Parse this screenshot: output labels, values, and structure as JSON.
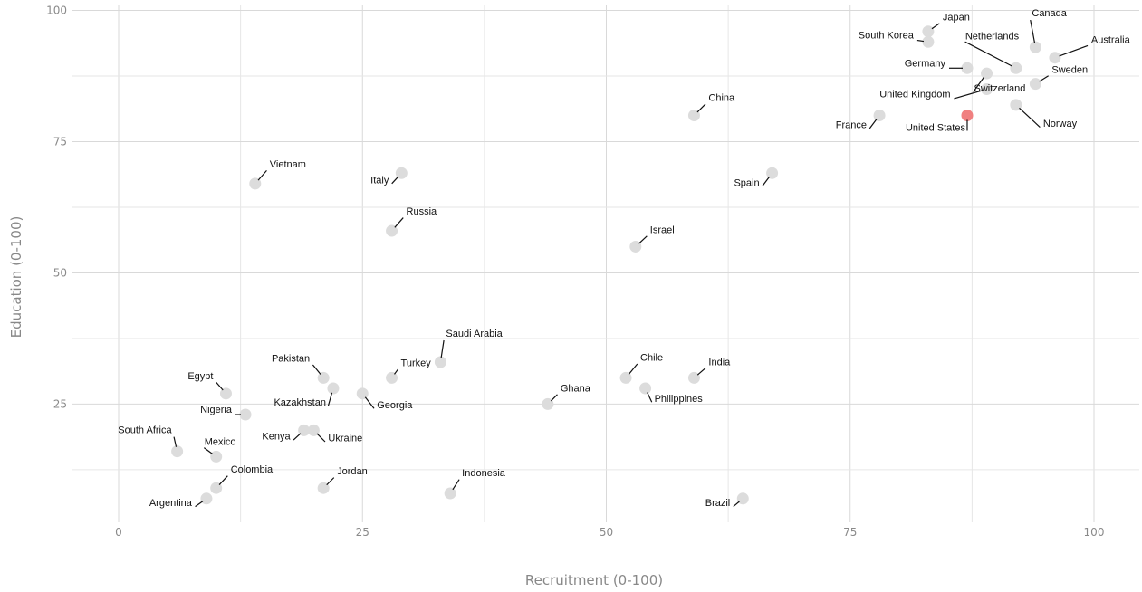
{
  "chart_data": {
    "type": "scatter",
    "xlabel": "Recruitment (0-100)",
    "ylabel": "Education (0-100)",
    "xlim": [
      -2,
      105
    ],
    "ylim": [
      2,
      101
    ],
    "x_ticks": [
      0,
      25,
      50,
      75,
      100
    ],
    "y_ticks": [
      25,
      50,
      75,
      100
    ],
    "grid": true,
    "colors": {
      "default": "#dcdcdc",
      "highlight": "#f08080"
    },
    "points": [
      {
        "label": "Japan",
        "x": 83,
        "y": 96
      },
      {
        "label": "South Korea",
        "x": 83,
        "y": 94
      },
      {
        "label": "Canada",
        "x": 94,
        "y": 93
      },
      {
        "label": "Australia",
        "x": 96,
        "y": 91
      },
      {
        "label": "Netherlands",
        "x": 92,
        "y": 89
      },
      {
        "label": "Germany",
        "x": 87,
        "y": 89
      },
      {
        "label": "Switzerland",
        "x": 89,
        "y": 88
      },
      {
        "label": "Sweden",
        "x": 94,
        "y": 86
      },
      {
        "label": "United Kingdom",
        "x": 89,
        "y": 85
      },
      {
        "label": "Norway",
        "x": 92,
        "y": 82
      },
      {
        "label": "China",
        "x": 59,
        "y": 80
      },
      {
        "label": "France",
        "x": 78,
        "y": 80
      },
      {
        "label": "United States",
        "x": 87,
        "y": 80,
        "highlight": true
      },
      {
        "label": "Vietnam",
        "x": 14,
        "y": 67
      },
      {
        "label": "Italy",
        "x": 29,
        "y": 69
      },
      {
        "label": "Spain",
        "x": 67,
        "y": 69
      },
      {
        "label": "Russia",
        "x": 28,
        "y": 58
      },
      {
        "label": "Israel",
        "x": 53,
        "y": 55
      },
      {
        "label": "Saudi Arabia",
        "x": 33,
        "y": 33
      },
      {
        "label": "Pakistan",
        "x": 21,
        "y": 30
      },
      {
        "label": "Turkey",
        "x": 28,
        "y": 30
      },
      {
        "label": "Chile",
        "x": 52,
        "y": 30
      },
      {
        "label": "India",
        "x": 59,
        "y": 30
      },
      {
        "label": "Kazakhstan",
        "x": 22,
        "y": 28
      },
      {
        "label": "Philippines",
        "x": 54,
        "y": 28
      },
      {
        "label": "Egypt",
        "x": 11,
        "y": 27
      },
      {
        "label": "Georgia",
        "x": 25,
        "y": 27
      },
      {
        "label": "Ghana",
        "x": 44,
        "y": 25
      },
      {
        "label": "Nigeria",
        "x": 13,
        "y": 23
      },
      {
        "label": "Kenya",
        "x": 19,
        "y": 20
      },
      {
        "label": "Ukraine",
        "x": 20,
        "y": 20
      },
      {
        "label": "South Africa",
        "x": 6,
        "y": 16
      },
      {
        "label": "Mexico",
        "x": 10,
        "y": 15
      },
      {
        "label": "Colombia",
        "x": 10,
        "y": 9
      },
      {
        "label": "Jordan",
        "x": 21,
        "y": 9
      },
      {
        "label": "Indonesia",
        "x": 34,
        "y": 8
      },
      {
        "label": "Argentina",
        "x": 9,
        "y": 7
      },
      {
        "label": "Brazil",
        "x": 64,
        "y": 7
      }
    ]
  }
}
